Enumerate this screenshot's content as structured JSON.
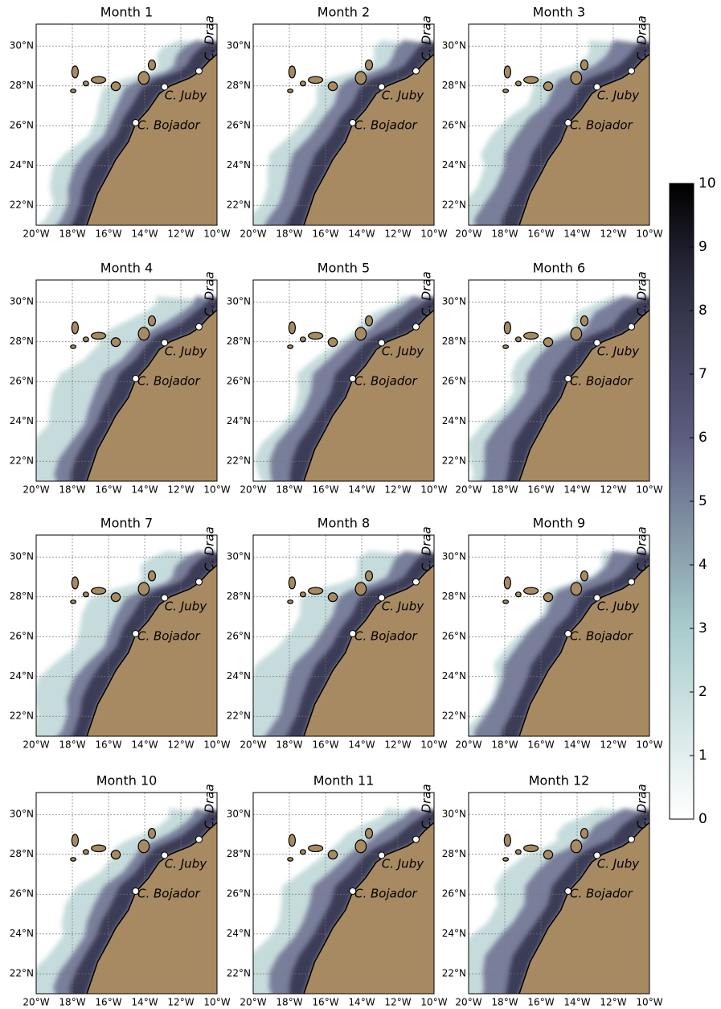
{
  "figure": {
    "panels": [
      {
        "title": "Month 1"
      },
      {
        "title": "Month 2"
      },
      {
        "title": "Month 3"
      },
      {
        "title": "Month 4"
      },
      {
        "title": "Month 5"
      },
      {
        "title": "Month 6"
      },
      {
        "title": "Month 7"
      },
      {
        "title": "Month 8"
      },
      {
        "title": "Month 9"
      },
      {
        "title": "Month 10"
      },
      {
        "title": "Month 11"
      },
      {
        "title": "Month 12"
      }
    ],
    "lon_range": [
      -20,
      -10
    ],
    "lat_range": [
      21,
      31.1
    ],
    "lon_ticks": [
      {
        "value": -20,
        "label": "20°W"
      },
      {
        "value": -18,
        "label": "18°W"
      },
      {
        "value": -16,
        "label": "16°W"
      },
      {
        "value": -14,
        "label": "14°W"
      },
      {
        "value": -12,
        "label": "12°W"
      },
      {
        "value": -10,
        "label": "10°W"
      }
    ],
    "lat_ticks": [
      {
        "value": 22,
        "label": "22°N"
      },
      {
        "value": 24,
        "label": "24°N"
      },
      {
        "value": 26,
        "label": "26°N"
      },
      {
        "value": 28,
        "label": "28°N"
      },
      {
        "value": 30,
        "label": "30°N"
      }
    ],
    "places": [
      {
        "name": "C. Draa"
      },
      {
        "name": "C. Juby"
      },
      {
        "name": "C. Bojador"
      }
    ],
    "colorbar": {
      "lim": [
        0,
        10
      ],
      "ticks": [
        0,
        1,
        2,
        3,
        4,
        5,
        6,
        7,
        8,
        9,
        10
      ]
    }
  }
}
